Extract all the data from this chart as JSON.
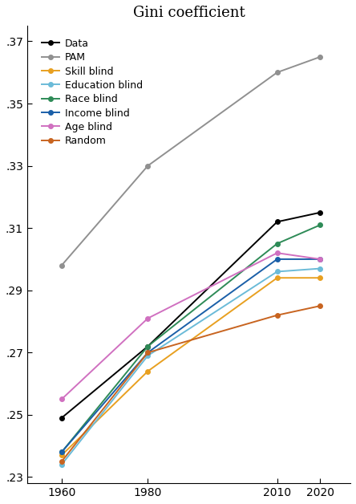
{
  "title": "Gini coefficient",
  "x": [
    1960,
    1980,
    2010,
    2020
  ],
  "series": {
    "Data": {
      "color": "#000000",
      "marker": "o",
      "values": [
        0.249,
        0.272,
        0.312,
        0.315
      ]
    },
    "PAM": {
      "color": "#909090",
      "marker": "o",
      "values": [
        0.298,
        0.33,
        0.36,
        0.365
      ]
    },
    "Skill blind": {
      "color": "#E8A020",
      "marker": "o",
      "values": [
        0.237,
        0.264,
        0.294,
        0.294
      ]
    },
    "Education blind": {
      "color": "#6BBBD8",
      "marker": "o",
      "values": [
        0.234,
        0.269,
        0.296,
        0.297
      ]
    },
    "Race blind": {
      "color": "#2E8B57",
      "marker": "o",
      "values": [
        0.238,
        0.272,
        0.305,
        0.311
      ]
    },
    "Income blind": {
      "color": "#1A5FA8",
      "marker": "o",
      "values": [
        0.238,
        0.27,
        0.3,
        0.3
      ]
    },
    "Age blind": {
      "color": "#D070C0",
      "marker": "o",
      "values": [
        0.255,
        0.281,
        0.302,
        0.3
      ]
    },
    "Random": {
      "color": "#C86420",
      "marker": "o",
      "values": [
        0.235,
        0.27,
        0.282,
        0.285
      ]
    }
  },
  "ylim": [
    0.228,
    0.375
  ],
  "yticks": [
    0.23,
    0.25,
    0.27,
    0.29,
    0.31,
    0.33,
    0.35,
    0.37
  ],
  "ytick_labels": [
    ".23",
    ".25",
    ".27",
    ".29",
    ".31",
    ".33",
    ".35",
    ".37"
  ],
  "xlim": [
    1952,
    2027
  ],
  "xticks": [
    1960,
    1980,
    2010,
    2020
  ],
  "legend_order": [
    "Data",
    "PAM",
    "Skill blind",
    "Education blind",
    "Race blind",
    "Income blind",
    "Age blind",
    "Random"
  ]
}
